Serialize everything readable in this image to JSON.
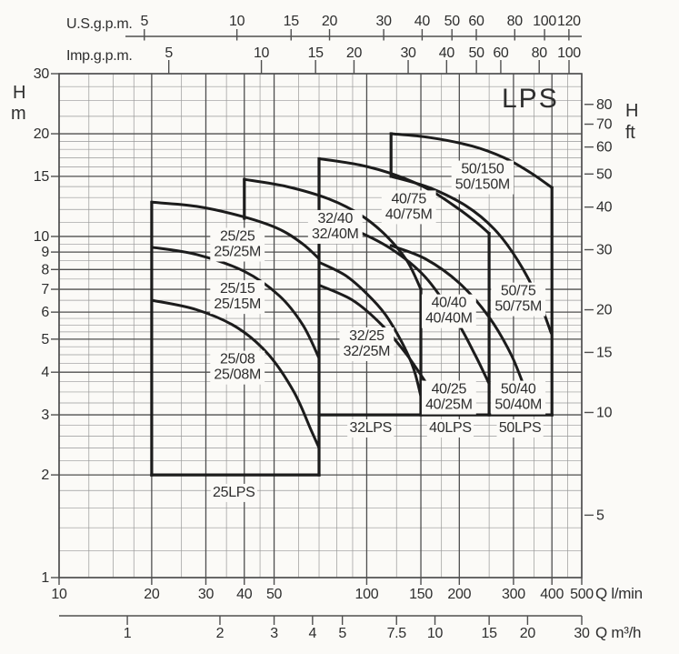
{
  "page": {
    "background": "#fbfaf7"
  },
  "colors": {
    "paper": "#fbfaf7",
    "ink": "#1c1c1c",
    "grid_minor": "#989898",
    "grid_major": "#4f4f4f",
    "text": "#2e2e2e"
  },
  "axis_titles": {
    "usgpm": "U.S.g.p.m.",
    "impgpm": "Imp.g.p.m.",
    "q_lmin": "Q l/min",
    "q_m3h": "Q m³/h",
    "head_letter": "H",
    "head_m_unit": "m",
    "head_ft_unit": "ft"
  },
  "chart_data": {
    "type": "line",
    "title": "LPS",
    "xlabel": "Q l/min",
    "ylabel": "H m",
    "x_scale": "log",
    "y_scale": "log",
    "xlim": [
      10,
      500
    ],
    "ylim": [
      1,
      30
    ],
    "grid": true,
    "x_ticks_lmin": [
      10,
      20,
      30,
      40,
      50,
      100,
      150,
      200,
      300,
      400,
      500
    ],
    "x_ticks_m3h": [
      1,
      2,
      3,
      4,
      5,
      7.5,
      10,
      15,
      20,
      30
    ],
    "m3h_to_lmin": 16.667,
    "x_ticks_usgpm": [
      5,
      10,
      15,
      20,
      30,
      40,
      50,
      60,
      80,
      100,
      120
    ],
    "usgpm_to_lmin": 3.785,
    "x_ticks_impgpm": [
      5,
      10,
      15,
      20,
      30,
      40,
      50,
      60,
      80,
      100
    ],
    "impgpm_to_lmin": 4.546,
    "y_ticks_m": [
      1,
      2,
      3,
      4,
      5,
      6,
      7,
      8,
      9,
      10,
      15,
      20,
      30
    ],
    "y_ticks_ft": [
      5,
      10,
      15,
      20,
      30,
      40,
      50,
      60,
      70,
      80
    ],
    "ft_to_m": 0.3048,
    "series": [
      {
        "name": "25/25",
        "label_lines": [
          "25/25",
          "25/25M"
        ],
        "label_at": [
          38,
          9.4
        ],
        "points": [
          [
            20,
            12.6
          ],
          [
            28,
            12.25
          ],
          [
            40,
            11.4
          ],
          [
            52,
            10.5
          ],
          [
            62,
            9.5
          ],
          [
            70,
            8.6
          ]
        ]
      },
      {
        "name": "25/15",
        "label_lines": [
          "25/15",
          "25/15M"
        ],
        "label_at": [
          38,
          6.6
        ],
        "points": [
          [
            20,
            9.3
          ],
          [
            28,
            8.85
          ],
          [
            40,
            7.9
          ],
          [
            52,
            6.7
          ],
          [
            62,
            5.5
          ],
          [
            70,
            4.4
          ]
        ]
      },
      {
        "name": "25/08",
        "label_lines": [
          "25/08",
          "25/08M"
        ],
        "label_at": [
          38,
          4.1
        ],
        "points": [
          [
            20,
            6.5
          ],
          [
            28,
            6.1
          ],
          [
            38,
            5.4
          ],
          [
            48,
            4.5
          ],
          [
            58,
            3.5
          ],
          [
            66,
            2.7
          ],
          [
            70,
            2.4
          ]
        ]
      },
      {
        "name": "32/40",
        "label_lines": [
          "32/40",
          "32/40M"
        ],
        "label_at": [
          79,
          10.6
        ],
        "points": [
          [
            40,
            14.7
          ],
          [
            55,
            14.0
          ],
          [
            75,
            12.9
          ],
          [
            95,
            11.6
          ],
          [
            115,
            10.1
          ],
          [
            135,
            8.5
          ],
          [
            150,
            7.0
          ]
        ]
      },
      {
        "name": "32/25",
        "label_lines": [
          "32/25",
          "32/25M"
        ],
        "label_at": [
          100,
          4.8
        ],
        "points": [
          [
            70,
            8.4
          ],
          [
            85,
            7.7
          ],
          [
            100,
            6.8
          ],
          [
            115,
            5.9
          ],
          [
            130,
            4.9
          ],
          [
            142,
            4.1
          ],
          [
            150,
            3.4
          ]
        ]
      },
      {
        "name": "40/75",
        "label_lines": [
          "40/75",
          "40/75M"
        ],
        "label_at": [
          137,
          12.1
        ],
        "points": [
          [
            70,
            16.9
          ],
          [
            95,
            16.2
          ],
          [
            125,
            15.1
          ],
          [
            160,
            13.7
          ],
          [
            200,
            12.0
          ],
          [
            230,
            10.9
          ],
          [
            250,
            10.2
          ]
        ]
      },
      {
        "name": "40/40",
        "label_lines": [
          "40/40",
          "40/40M"
        ],
        "label_at": [
          185,
          6.0
        ],
        "points": [
          [
            70,
            11.3
          ],
          [
            90,
            10.5
          ],
          [
            120,
            9.2
          ],
          [
            155,
            7.6
          ],
          [
            195,
            5.7
          ],
          [
            225,
            4.5
          ],
          [
            250,
            3.7
          ]
        ]
      },
      {
        "name": "40/25",
        "label_lines": [
          "40/25",
          "40/25M"
        ],
        "label_at": [
          185,
          3.35
        ],
        "points": [
          [
            70,
            7.2
          ],
          [
            90,
            6.5
          ],
          [
            112,
            5.5
          ],
          [
            135,
            4.5
          ],
          [
            160,
            3.6
          ],
          [
            182,
            3.05
          ]
        ]
      },
      {
        "name": "50/150",
        "label_lines": [
          "50/150",
          "50/150M"
        ],
        "label_at": [
          238,
          14.8
        ],
        "points": [
          [
            120,
            20
          ],
          [
            160,
            19.5
          ],
          [
            220,
            18.4
          ],
          [
            280,
            17.0
          ],
          [
            340,
            15.4
          ],
          [
            400,
            13.9
          ]
        ]
      },
      {
        "name": "50/75",
        "label_lines": [
          "50/75",
          "50/75M"
        ],
        "label_at": [
          311,
          6.5
        ],
        "points": [
          [
            120,
            15.0
          ],
          [
            160,
            13.9
          ],
          [
            210,
            12.3
          ],
          [
            260,
            10.5
          ],
          [
            310,
            8.5
          ],
          [
            360,
            6.6
          ],
          [
            398,
            5.2
          ]
        ]
      },
      {
        "name": "50/40",
        "label_lines": [
          "50/40",
          "50/40M"
        ],
        "label_at": [
          311,
          3.35
        ],
        "points": [
          [
            120,
            9.4
          ],
          [
            155,
            8.6
          ],
          [
            200,
            7.3
          ],
          [
            250,
            5.8
          ],
          [
            295,
            4.5
          ],
          [
            330,
            3.5
          ],
          [
            340,
            3.3
          ]
        ]
      }
    ],
    "boundaries": [
      {
        "name": "25lps-left-edge",
        "points": [
          [
            20,
            2
          ],
          [
            20,
            12.6
          ]
        ]
      },
      {
        "name": "25lps-bottom-edge",
        "points": [
          [
            20,
            2
          ],
          [
            70,
            2
          ]
        ]
      },
      {
        "name": "q70-edge",
        "points": [
          [
            70,
            2
          ],
          [
            70,
            16.9
          ]
        ]
      },
      {
        "name": "min-head-3m-edge",
        "points": [
          [
            70,
            3
          ],
          [
            400,
            3
          ]
        ]
      },
      {
        "name": "32-40-start-edge",
        "points": [
          [
            40,
            11.3
          ],
          [
            40,
            14.7
          ]
        ]
      },
      {
        "name": "50-start-edge",
        "points": [
          [
            120,
            15.0
          ],
          [
            120,
            20
          ]
        ]
      },
      {
        "name": "32lps-right-edge",
        "points": [
          [
            150,
            3
          ],
          [
            150,
            7.0
          ]
        ]
      },
      {
        "name": "40lps-right-edge",
        "points": [
          [
            250,
            3
          ],
          [
            250,
            10.2
          ]
        ]
      },
      {
        "name": "50lps-right-edge",
        "points": [
          [
            400,
            3
          ],
          [
            400,
            13.9
          ]
        ]
      }
    ],
    "family_labels": [
      {
        "text": "25LPS",
        "at": [
          37,
          1.76
        ]
      },
      {
        "text": "32LPS",
        "at": [
          103,
          2.72
        ]
      },
      {
        "text": "40LPS",
        "at": [
          187,
          2.72
        ]
      },
      {
        "text": "50LPS",
        "at": [
          315,
          2.72
        ]
      }
    ]
  }
}
